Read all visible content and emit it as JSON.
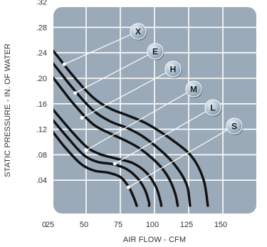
{
  "chart_data": {
    "type": "line",
    "title": "",
    "xlabel": "AIR FLOW - CFM",
    "ylabel": "STATIC PRESSURE - IN. OF WATER",
    "xlim": [
      0,
      150
    ],
    "ylim": [
      0,
      0.32
    ],
    "x_ticks": [
      "0",
      "25",
      "50",
      "75",
      "100",
      "125",
      "150"
    ],
    "y_ticks": [
      ".04",
      ".08",
      ".12",
      ".16",
      ".20",
      ".24",
      ".28",
      ".32"
    ],
    "grid": true,
    "legend": "callout badges",
    "colors": {
      "plot_background": "#9aaab9",
      "grid": "#ffffff",
      "curve": "#111111",
      "badge": "#a9bfd0"
    },
    "series": [
      {
        "name": "X",
        "label_point": [
          34,
          0.222
        ],
        "points": [
          [
            0,
            0.298
          ],
          [
            20,
            0.258
          ],
          [
            40,
            0.205
          ],
          [
            55,
            0.17
          ],
          [
            68,
            0.152
          ],
          [
            80,
            0.142
          ],
          [
            95,
            0.128
          ],
          [
            115,
            0.1
          ],
          [
            128,
            0.075
          ],
          [
            136,
            0.04
          ],
          [
            139,
            0
          ]
        ]
      },
      {
        "name": "E",
        "label_point": [
          42,
          0.177
        ],
        "points": [
          [
            0,
            0.278
          ],
          [
            20,
            0.238
          ],
          [
            40,
            0.185
          ],
          [
            55,
            0.15
          ],
          [
            68,
            0.132
          ],
          [
            80,
            0.122
          ],
          [
            92,
            0.108
          ],
          [
            108,
            0.08
          ],
          [
            118,
            0.055
          ],
          [
            124,
            0.03
          ],
          [
            126,
            0
          ]
        ]
      },
      {
        "name": "H",
        "label_point": [
          47,
          0.138
        ],
        "points": [
          [
            0,
            0.258
          ],
          [
            20,
            0.216
          ],
          [
            40,
            0.162
          ],
          [
            55,
            0.128
          ],
          [
            68,
            0.113
          ],
          [
            78,
            0.103
          ],
          [
            89,
            0.09
          ],
          [
            102,
            0.067
          ],
          [
            110,
            0.045
          ],
          [
            115,
            0.02
          ],
          [
            117,
            0
          ]
        ]
      },
      {
        "name": "M",
        "label_point": [
          50,
          0.087
        ],
        "points": [
          [
            0,
            0.21
          ],
          [
            20,
            0.165
          ],
          [
            38,
            0.12
          ],
          [
            50,
            0.093
          ],
          [
            60,
            0.081
          ],
          [
            72,
            0.074
          ],
          [
            84,
            0.067
          ],
          [
            94,
            0.052
          ],
          [
            101,
            0.03
          ],
          [
            104,
            0.01
          ],
          [
            105,
            0
          ]
        ]
      },
      {
        "name": "L",
        "label_point": [
          71,
          0.066
        ],
        "points": [
          [
            0,
            0.19
          ],
          [
            20,
            0.148
          ],
          [
            36,
            0.108
          ],
          [
            48,
            0.08
          ],
          [
            58,
            0.069
          ],
          [
            70,
            0.065
          ],
          [
            80,
            0.057
          ],
          [
            88,
            0.042
          ],
          [
            93,
            0.025
          ],
          [
            96,
            0.005
          ],
          [
            96,
            0
          ]
        ]
      },
      {
        "name": "S",
        "label_point": [
          81,
          0.029
        ],
        "points": [
          [
            0,
            0.17
          ],
          [
            20,
            0.13
          ],
          [
            34,
            0.093
          ],
          [
            46,
            0.066
          ],
          [
            56,
            0.055
          ],
          [
            66,
            0.052
          ],
          [
            75,
            0.045
          ],
          [
            81,
            0.03
          ],
          [
            85,
            0.012
          ],
          [
            87,
            0
          ]
        ]
      }
    ]
  }
}
